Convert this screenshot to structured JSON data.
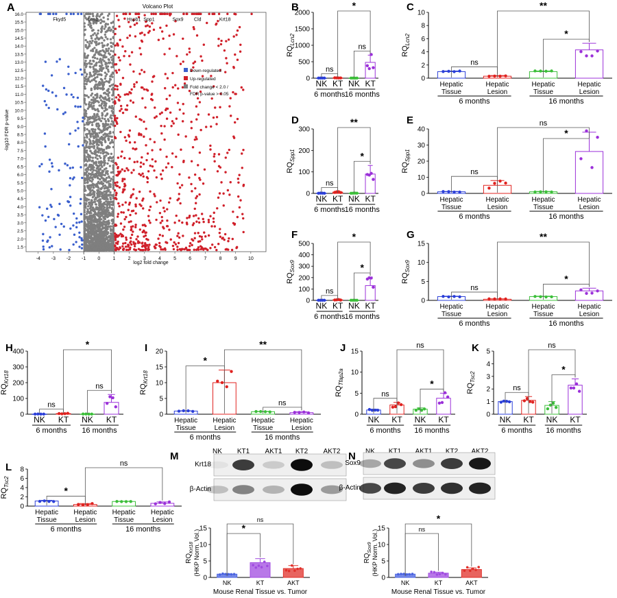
{
  "volcano": {
    "letter": "A",
    "title": "Volcano Plot",
    "xlabel": "log2 fold change",
    "ylabel": "-log10 FDR p-value",
    "xticks": [
      -4,
      -3,
      -2,
      -1,
      0,
      1,
      2,
      3,
      4,
      5,
      6,
      7,
      8,
      9,
      10
    ],
    "yticks": [
      "1.5",
      "2.0",
      "2.5",
      "3.0",
      "3.5",
      "4.0",
      "4.5",
      "5.0",
      "5.5",
      "6.0",
      "6.5",
      "7.0",
      "7.5",
      "8.0",
      "8.5",
      "9.0",
      "9.5",
      "10.0",
      "10.5",
      "11.0",
      "11.5",
      "12.0",
      "12.5",
      "13.0",
      "13.5",
      "14.0",
      "14.5",
      "15.0",
      "15.5",
      "16.0"
    ],
    "genes": [
      {
        "name": "Fkyd5",
        "x": -2.6,
        "y": 16.0
      },
      {
        "name": "Lcn1",
        "x": -0.4,
        "y": 16.0
      },
      {
        "name": "Hspb1",
        "x": 2.3,
        "y": 16.0
      },
      {
        "name": "Spp1",
        "x": 3.3,
        "y": 16.0
      },
      {
        "name": "Sox9",
        "x": 5.2,
        "y": 16.0
      },
      {
        "name": "Cld",
        "x": 6.5,
        "y": 16.0
      },
      {
        "name": "Krt18",
        "x": 8.3,
        "y": 16.0
      }
    ],
    "legend": [
      {
        "label": "Down-regulated",
        "color": "#3a5fcd"
      },
      {
        "label": "Up-regulated",
        "color": "#d0202a"
      },
      {
        "label": "Fold change < 2.0 /",
        "color": "#7f7f7f"
      },
      {
        "label": "FDR p-value > 0.05",
        "color": ""
      }
    ],
    "thresholds": {
      "fold": [
        -1,
        1
      ],
      "p": 1.3
    }
  },
  "panels": [
    {
      "id": "B",
      "letter": "B",
      "ylabel": "RQ",
      "ysub": "Lcn2",
      "yticks": [
        0,
        500,
        1000,
        1500,
        2000
      ],
      "ymax": 2000,
      "cats": [
        "NK",
        "KT",
        "NK",
        "KT"
      ],
      "groups": [
        "6 months",
        "16 months"
      ],
      "bars": [
        3,
        8,
        3,
        480
      ],
      "err": [
        1,
        3,
        1,
        220
      ],
      "colors": [
        "#2b3fd8",
        "#e0221f",
        "#3cbf3a",
        "#9b30d9"
      ],
      "sig": [
        {
          "a": 0,
          "b": 1,
          "t": "ns",
          "lvl": 0
        },
        {
          "a": 2,
          "b": 3,
          "t": "ns",
          "lvl": 0
        },
        {
          "a": 1,
          "b": 3,
          "t": "*",
          "lvl": 1
        }
      ]
    },
    {
      "id": "C",
      "letter": "C",
      "ylabel": "RQ",
      "ysub": "Lcn2",
      "yticks": [
        0,
        2,
        4,
        6,
        8,
        10
      ],
      "ymax": 10,
      "cats": [
        "Hepatic\nTissue",
        "Hepatic\nLesion",
        "Hepatic\nTissue",
        "Hepatic\nLesion"
      ],
      "groups": [
        "6 months",
        "16 months"
      ],
      "bars": [
        1.0,
        0.3,
        1.0,
        4.3
      ],
      "err": [
        0.1,
        0.1,
        0.1,
        1.0
      ],
      "colors": [
        "#2b3fd8",
        "#e0221f",
        "#3cbf3a",
        "#9b30d9"
      ],
      "sig": [
        {
          "a": 0,
          "b": 1,
          "t": "ns",
          "lvl": 0
        },
        {
          "a": 2,
          "b": 3,
          "t": "*",
          "lvl": 0
        },
        {
          "a": 1,
          "b": 3,
          "t": "**",
          "lvl": 1
        }
      ]
    },
    {
      "id": "D",
      "letter": "D",
      "ylabel": "RQ",
      "ysub": "Spp1",
      "yticks": [
        0,
        100,
        200,
        300
      ],
      "ymax": 300,
      "cats": [
        "NK",
        "KT",
        "NK",
        "KT"
      ],
      "groups": [
        "6 months",
        "16 months"
      ],
      "bars": [
        1,
        6,
        1,
        90
      ],
      "err": [
        0.5,
        2,
        0.5,
        40
      ],
      "colors": [
        "#2b3fd8",
        "#e0221f",
        "#3cbf3a",
        "#9b30d9"
      ],
      "sig": [
        {
          "a": 0,
          "b": 1,
          "t": "ns",
          "lvl": 0
        },
        {
          "a": 2,
          "b": 3,
          "t": "*",
          "lvl": 0
        },
        {
          "a": 1,
          "b": 3,
          "t": "**",
          "lvl": 1
        }
      ]
    },
    {
      "id": "E",
      "letter": "E",
      "ylabel": "RQ",
      "ysub": "Spp1",
      "yticks": [
        0,
        10,
        20,
        30,
        40
      ],
      "ymax": 40,
      "cats": [
        "Hepatic\nTissue",
        "Hepatic\nLesion",
        "Hepatic\nTissue",
        "Hepatic\nLesion"
      ],
      "groups": [
        "6 months",
        "16 months"
      ],
      "bars": [
        1.0,
        5.0,
        1.0,
        26.0
      ],
      "err": [
        0.2,
        3.0,
        0.2,
        12.0
      ],
      "colors": [
        "#2b3fd8",
        "#e0221f",
        "#3cbf3a",
        "#9b30d9"
      ],
      "sig": [
        {
          "a": 0,
          "b": 1,
          "t": "ns",
          "lvl": 0
        },
        {
          "a": 2,
          "b": 3,
          "t": "*",
          "lvl": 0
        },
        {
          "a": 1,
          "b": 3,
          "t": "ns",
          "lvl": 1
        }
      ]
    },
    {
      "id": "F",
      "letter": "F",
      "ylabel": "RQ",
      "ysub": "Sox9",
      "yticks": [
        0,
        100,
        200,
        300,
        400,
        500
      ],
      "ymax": 500,
      "cats": [
        "NK",
        "KT",
        "NK",
        "KT"
      ],
      "groups": [
        "6 months",
        "16 months"
      ],
      "bars": [
        1,
        5,
        1,
        130
      ],
      "err": [
        0.5,
        2,
        0.5,
        75
      ],
      "colors": [
        "#2b3fd8",
        "#e0221f",
        "#3cbf3a",
        "#9b30d9"
      ],
      "sig": [
        {
          "a": 0,
          "b": 1,
          "t": "ns",
          "lvl": 0
        },
        {
          "a": 2,
          "b": 3,
          "t": "*",
          "lvl": 0
        },
        {
          "a": 1,
          "b": 3,
          "t": "*",
          "lvl": 1
        }
      ]
    },
    {
      "id": "G",
      "letter": "G",
      "ylabel": "RQ",
      "ysub": "Sox9",
      "yticks": [
        0,
        5,
        10,
        15
      ],
      "ymax": 15,
      "cats": [
        "Hepatic\nTissue",
        "Hepatic\nLesion",
        "Hepatic\nTissue",
        "Hepatic\nLesion"
      ],
      "groups": [
        "6 months",
        "16 months"
      ],
      "bars": [
        1.0,
        0.3,
        1.0,
        2.5
      ],
      "err": [
        0.1,
        0.1,
        0.1,
        0.7
      ],
      "colors": [
        "#2b3fd8",
        "#e0221f",
        "#3cbf3a",
        "#9b30d9"
      ],
      "sig": [
        {
          "a": 0,
          "b": 1,
          "t": "ns",
          "lvl": 0
        },
        {
          "a": 2,
          "b": 3,
          "t": "*",
          "lvl": 0
        },
        {
          "a": 1,
          "b": 3,
          "t": "**",
          "lvl": 1
        }
      ]
    },
    {
      "id": "H",
      "letter": "H",
      "ylabel": "RQ",
      "ysub": "Krt18",
      "yticks": [
        0,
        100,
        200,
        300,
        400
      ],
      "ymax": 400,
      "cats": [
        "NK",
        "KT",
        "NK",
        "KT"
      ],
      "groups": [
        "6 months",
        "16 months"
      ],
      "bars": [
        1,
        4,
        1,
        75
      ],
      "err": [
        0.5,
        2,
        0.5,
        50
      ],
      "colors": [
        "#2b3fd8",
        "#e0221f",
        "#3cbf3a",
        "#9b30d9"
      ],
      "sig": [
        {
          "a": 0,
          "b": 1,
          "t": "ns",
          "lvl": 0
        },
        {
          "a": 2,
          "b": 3,
          "t": "ns",
          "lvl": 0
        },
        {
          "a": 1,
          "b": 3,
          "t": "*",
          "lvl": 1
        }
      ]
    },
    {
      "id": "I",
      "letter": "I",
      "ylabel": "RQ",
      "ysub": "Krt18",
      "yticks": [
        0,
        5,
        10,
        15,
        20
      ],
      "ymax": 20,
      "cats": [
        "Hepatic\nTissue",
        "Hepatic\nLesion",
        "Hepatic\nTissue",
        "Hepatic\nLesion"
      ],
      "groups": [
        "6 months",
        "16 months"
      ],
      "bars": [
        1.0,
        10.0,
        0.8,
        0.5
      ],
      "err": [
        0.1,
        4.0,
        0.1,
        0.3
      ],
      "colors": [
        "#2b3fd8",
        "#e0221f",
        "#3cbf3a",
        "#9b30d9"
      ],
      "sig": [
        {
          "a": 0,
          "b": 1,
          "t": "*",
          "lvl": 0
        },
        {
          "a": 2,
          "b": 3,
          "t": "ns",
          "lvl": 0
        },
        {
          "a": 1,
          "b": 3,
          "t": "**",
          "lvl": 1
        }
      ]
    },
    {
      "id": "J",
      "letter": "J",
      "ylabel": "RQ",
      "ysub": "Tfap2a",
      "yticks": [
        0,
        5,
        10,
        15
      ],
      "ymax": 15,
      "cats": [
        "NK",
        "KT",
        "NK",
        "KT"
      ],
      "groups": [
        "6 months",
        "16 months"
      ],
      "bars": [
        1.0,
        2.2,
        1.2,
        3.8
      ],
      "err": [
        0.2,
        0.6,
        0.3,
        1.2
      ],
      "colors": [
        "#2b3fd8",
        "#e0221f",
        "#3cbf3a",
        "#9b30d9"
      ],
      "sig": [
        {
          "a": 0,
          "b": 1,
          "t": "ns",
          "lvl": 0
        },
        {
          "a": 2,
          "b": 3,
          "t": "*",
          "lvl": 0
        },
        {
          "a": 1,
          "b": 3,
          "t": "ns",
          "lvl": 1
        }
      ]
    },
    {
      "id": "K",
      "letter": "K",
      "ylabel": "RQ",
      "ysub": "Tsc2",
      "yticks": [
        0,
        1,
        2,
        3,
        4,
        5
      ],
      "ymax": 5,
      "cats": [
        "NK",
        "KT",
        "NK",
        "KT"
      ],
      "groups": [
        "6 months",
        "16 months"
      ],
      "bars": [
        1.0,
        1.1,
        0.7,
        2.3
      ],
      "err": [
        0.05,
        0.3,
        0.3,
        0.5
      ],
      "colors": [
        "#2b3fd8",
        "#e0221f",
        "#3cbf3a",
        "#9b30d9"
      ],
      "sig": [
        {
          "a": 0,
          "b": 1,
          "t": "ns",
          "lvl": 0
        },
        {
          "a": 2,
          "b": 3,
          "t": "*",
          "lvl": 0
        },
        {
          "a": 1,
          "b": 3,
          "t": "ns",
          "lvl": 1
        }
      ]
    },
    {
      "id": "L",
      "letter": "L",
      "ylabel": "RQ",
      "ysub": "Tsc2",
      "yticks": [
        0,
        2,
        4,
        6,
        8
      ],
      "ymax": 8,
      "cats": [
        "Hepatic\nTissue",
        "Hepatic\nLesion",
        "Hepatic\nTissue",
        "Hepatic\nLesion"
      ],
      "groups": [
        "6 months",
        "16 months"
      ],
      "bars": [
        1.1,
        0.35,
        1.0,
        0.6
      ],
      "err": [
        0.15,
        0.2,
        0.05,
        0.3
      ],
      "colors": [
        "#2b3fd8",
        "#e0221f",
        "#3cbf3a",
        "#9b30d9"
      ],
      "sig": [
        {
          "a": 0,
          "b": 1,
          "t": "*",
          "lvl": 0
        },
        {
          "a": 1,
          "b": 3,
          "t": "ns",
          "lvl": 1
        }
      ]
    }
  ],
  "blots": [
    {
      "id": "M",
      "letter": "M",
      "lanes": [
        "NK",
        "KT1",
        "AKT1",
        "KT2",
        "AKT2"
      ],
      "rows": [
        "Krt18",
        "β-Actin"
      ],
      "bar": {
        "ylabel": "RQ",
        "ysub": "Krt18",
        "ylabel2": "(HKP Norm. Vol.)",
        "yticks": [
          0,
          5,
          10,
          15
        ],
        "ymax": 15,
        "cats": [
          "NK",
          "KT",
          "AKT"
        ],
        "bars": [
          1.0,
          4.5,
          2.7
        ],
        "err": [
          0.1,
          1.2,
          0.9
        ],
        "colors": [
          "#4a63e0",
          "#a04be0",
          "#e0302a"
        ],
        "xlabel": "Mouse Renal Tissue vs. Tumor",
        "sig": [
          {
            "a": 0,
            "b": 1,
            "t": "*",
            "lvl": 0
          },
          {
            "a": 0,
            "b": 2,
            "t": "ns",
            "lvl": 1
          }
        ]
      }
    },
    {
      "id": "N",
      "letter": "N",
      "lanes": [
        "NK",
        "KT1",
        "AKT1",
        "KT2",
        "AKT2"
      ],
      "rows": [
        "Sox9",
        "β-Actin"
      ],
      "bar": {
        "ylabel": "RQ",
        "ysub": "Sox9",
        "ylabel2": "(HKP Norm. Vol.)",
        "yticks": [
          0,
          5,
          10,
          15
        ],
        "ymax": 15,
        "cats": [
          "NK",
          "KT",
          "AKT"
        ],
        "bars": [
          1.0,
          1.3,
          2.4
        ],
        "err": [
          0.1,
          0.3,
          0.5
        ],
        "colors": [
          "#4a63e0",
          "#a04be0",
          "#e0302a"
        ],
        "xlabel": "Mouse Renal Tissue vs. Tumor",
        "sig": [
          {
            "a": 0,
            "b": 1,
            "t": "ns",
            "lvl": 0
          },
          {
            "a": 0,
            "b": 2,
            "t": "*",
            "lvl": 1
          }
        ]
      }
    }
  ]
}
